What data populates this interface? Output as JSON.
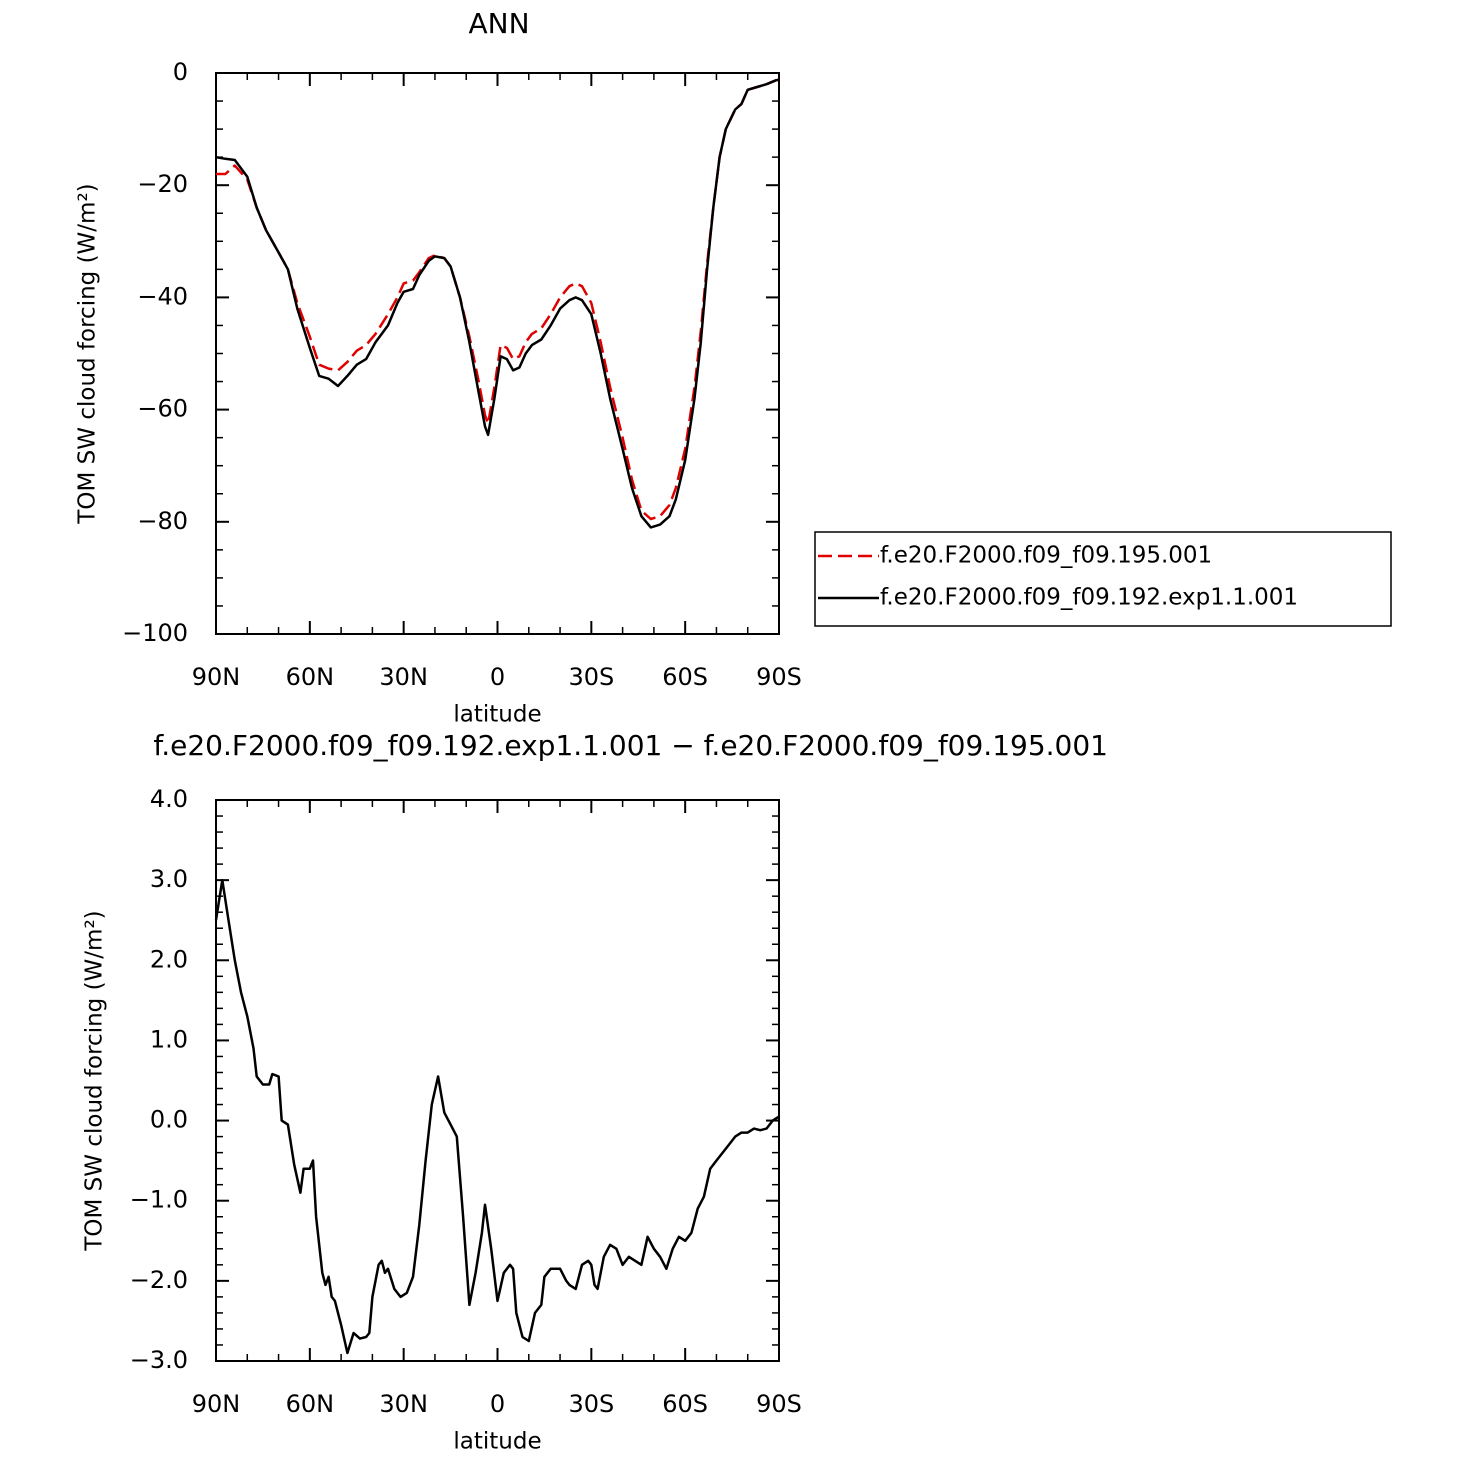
{
  "chart_data": [
    {
      "type": "line",
      "title": "ANN",
      "x_label": "latitude",
      "y_label": "TOM SW cloud forcing (W/m²)",
      "x": [
        90,
        87,
        84,
        80,
        77,
        74,
        70,
        67,
        64,
        60,
        57,
        54,
        51,
        48,
        45,
        42,
        39,
        35,
        32,
        30,
        27,
        25,
        22,
        20,
        17,
        15,
        12,
        9,
        6,
        4,
        3,
        1,
        -1,
        -3,
        -5,
        -7,
        -9,
        -11,
        -14,
        -17,
        -20,
        -23,
        -25,
        -27,
        -30,
        -33,
        -36,
        -40,
        -43,
        -46,
        -49,
        -52,
        -55,
        -57,
        -60,
        -63,
        -65,
        -67,
        -69,
        -71,
        -73,
        -76,
        -78,
        -80,
        -83,
        -86,
        -89,
        -90
      ],
      "series": [
        {
          "name": "f.e20.F2000.f09_f09.195.001",
          "color": "#e00000",
          "dash": "dashed",
          "values": [
            -18,
            -18,
            -16.5,
            -19,
            -24,
            -28,
            -32,
            -35,
            -41,
            -47,
            -52,
            -52.7,
            -53,
            -51.5,
            -49.5,
            -48.5,
            -46.5,
            -43,
            -40,
            -37.5,
            -37,
            -35.5,
            -33,
            -32.5,
            -33,
            -34.5,
            -40,
            -47,
            -55,
            -61,
            -62.5,
            -56,
            -48.5,
            -49,
            -51,
            -50.5,
            -48,
            -46.5,
            -45.5,
            -43,
            -40,
            -38,
            -37.5,
            -38,
            -41,
            -48,
            -56,
            -65,
            -72.5,
            -78,
            -79.5,
            -79,
            -77,
            -74,
            -67,
            -56,
            -46,
            -34,
            -24,
            -15,
            -10,
            -6.5,
            -5.5,
            -3,
            -2.5,
            -2,
            -1.3,
            -1.2
          ]
        },
        {
          "name": "f.e20.F2000.f09_f09.192.exp1.1.001",
          "color": "#000000",
          "dash": "solid",
          "values": [
            -15,
            -15.3,
            -15.5,
            -18.5,
            -24,
            -28,
            -32,
            -35,
            -42,
            -49,
            -54,
            -54.5,
            -55.8,
            -54,
            -52,
            -51,
            -48,
            -45,
            -41,
            -39,
            -38.5,
            -36,
            -33.5,
            -32.7,
            -33,
            -34.5,
            -40,
            -48,
            -57,
            -63,
            -64.5,
            -58,
            -50.5,
            -51,
            -53,
            -52.5,
            -50,
            -48.5,
            -47.5,
            -45,
            -42,
            -40.5,
            -40,
            -40.5,
            -43,
            -50,
            -58,
            -67,
            -74,
            -79,
            -81,
            -80.5,
            -79,
            -76,
            -69,
            -58,
            -48,
            -35,
            -24,
            -15,
            -10,
            -6.5,
            -5.5,
            -3,
            -2.5,
            -2,
            -1.3,
            -1.2
          ]
        }
      ],
      "xlim": [
        90,
        -90
      ],
      "xticks": [
        {
          "value": 90,
          "label": "90N"
        },
        {
          "value": 60,
          "label": "60N"
        },
        {
          "value": 30,
          "label": "30N"
        },
        0,
        {
          "value": -30,
          "label": "30S"
        },
        {
          "value": -60,
          "label": "60S"
        },
        {
          "value": -90,
          "label": "90S"
        }
      ],
      "xminorticks": [
        80,
        70,
        50,
        40,
        20,
        10,
        -10,
        -20,
        -40,
        -50,
        -70,
        -80
      ],
      "ylim": [
        -100,
        0
      ],
      "yticks": [
        0,
        {
          "value": -20,
          "label": "−20"
        },
        {
          "value": -40,
          "label": "−40"
        },
        {
          "value": -60,
          "label": "−60"
        },
        {
          "value": -80,
          "label": "−80"
        },
        {
          "value": -100,
          "label": "−100"
        }
      ],
      "yminorticks": [
        -5,
        -10,
        -15,
        -25,
        -30,
        -35,
        -45,
        -50,
        -55,
        -65,
        -70,
        -75,
        -85,
        -90,
        -95
      ],
      "legend": "right"
    },
    {
      "type": "line",
      "title": "f.e20.F2000.f09_f09.192.exp1.1.001 − f.e20.F2000.f09_f09.195.001",
      "x_label": "latitude",
      "y_label": "TOM SW cloud forcing (W/m²)",
      "x": [
        90,
        88,
        86,
        84,
        82,
        80,
        78,
        77,
        75,
        73,
        72,
        70,
        69,
        67,
        65,
        63,
        62,
        60,
        59,
        58,
        56,
        55,
        54,
        53,
        52,
        50,
        48,
        46,
        44,
        42,
        41,
        40,
        38,
        37,
        36,
        35,
        33,
        31,
        29,
        27,
        25,
        23,
        21,
        19,
        17,
        15,
        13,
        11,
        9,
        7,
        5,
        4,
        2,
        0,
        -2,
        -4,
        -5,
        -6,
        -8,
        -10,
        -12,
        -14,
        -15,
        -17,
        -20,
        -22,
        -23,
        -25,
        -27,
        -29,
        -30,
        -31,
        -32,
        -34,
        -36,
        -38,
        -40,
        -42,
        -44,
        -46,
        -48,
        -50,
        -52,
        -54,
        -56,
        -58,
        -60,
        -62,
        -64,
        -66,
        -68,
        -70,
        -72,
        -74,
        -76,
        -78,
        -80,
        -82,
        -84,
        -86,
        -88,
        -90
      ],
      "series": [
        {
          "color": "#000000",
          "dash": "solid",
          "values": [
            2.5,
            3.0,
            2.5,
            2.0,
            1.6,
            1.3,
            0.9,
            0.55,
            0.45,
            0.45,
            0.58,
            0.55,
            0.0,
            -0.05,
            -0.55,
            -0.9,
            -0.6,
            -0.6,
            -0.5,
            -1.2,
            -1.9,
            -2.05,
            -1.95,
            -2.2,
            -2.25,
            -2.55,
            -2.9,
            -2.65,
            -2.72,
            -2.7,
            -2.65,
            -2.2,
            -1.8,
            -1.75,
            -1.9,
            -1.85,
            -2.1,
            -2.2,
            -2.15,
            -1.95,
            -1.3,
            -0.5,
            0.2,
            0.55,
            0.1,
            -0.05,
            -0.2,
            -1.2,
            -2.3,
            -1.9,
            -1.4,
            -1.05,
            -1.6,
            -2.25,
            -1.9,
            -1.8,
            -1.85,
            -2.4,
            -2.7,
            -2.75,
            -2.4,
            -2.3,
            -1.95,
            -1.85,
            -1.85,
            -2.0,
            -2.05,
            -2.1,
            -1.8,
            -1.75,
            -1.8,
            -2.05,
            -2.1,
            -1.7,
            -1.55,
            -1.6,
            -1.8,
            -1.7,
            -1.75,
            -1.8,
            -1.45,
            -1.6,
            -1.7,
            -1.85,
            -1.6,
            -1.45,
            -1.5,
            -1.4,
            -1.1,
            -0.95,
            -0.6,
            -0.5,
            -0.4,
            -0.3,
            -0.2,
            -0.15,
            -0.15,
            -0.1,
            -0.12,
            -0.1,
            0.0,
            0.05
          ]
        }
      ],
      "xlim": [
        90,
        -90
      ],
      "xticks": [
        {
          "value": 90,
          "label": "90N"
        },
        {
          "value": 60,
          "label": "60N"
        },
        {
          "value": 30,
          "label": "30N"
        },
        0,
        {
          "value": -30,
          "label": "30S"
        },
        {
          "value": -60,
          "label": "60S"
        },
        {
          "value": -90,
          "label": "90S"
        }
      ],
      "xminorticks": [
        80,
        70,
        50,
        40,
        20,
        10,
        -10,
        -20,
        -40,
        -50,
        -70,
        -80
      ],
      "ylim": [
        -3,
        4
      ],
      "yticks": [
        {
          "value": 4,
          "label": "4.0"
        },
        {
          "value": 3,
          "label": "3.0"
        },
        {
          "value": 2,
          "label": "2.0"
        },
        {
          "value": 1,
          "label": "1.0"
        },
        {
          "value": 0,
          "label": "0.0"
        },
        {
          "value": -1,
          "label": "−1.0"
        },
        {
          "value": -2,
          "label": "−2.0"
        },
        {
          "value": -3,
          "label": "−3.0"
        }
      ],
      "yminorticks": [
        3.8,
        3.6,
        3.4,
        3.2,
        2.8,
        2.6,
        2.4,
        2.2,
        1.8,
        1.6,
        1.4,
        1.2,
        0.8,
        0.6,
        0.4,
        0.2,
        -0.2,
        -0.4,
        -0.6,
        -0.8,
        -1.2,
        -1.4,
        -1.6,
        -1.8,
        -2.2,
        -2.4,
        -2.6,
        -2.8
      ]
    }
  ]
}
